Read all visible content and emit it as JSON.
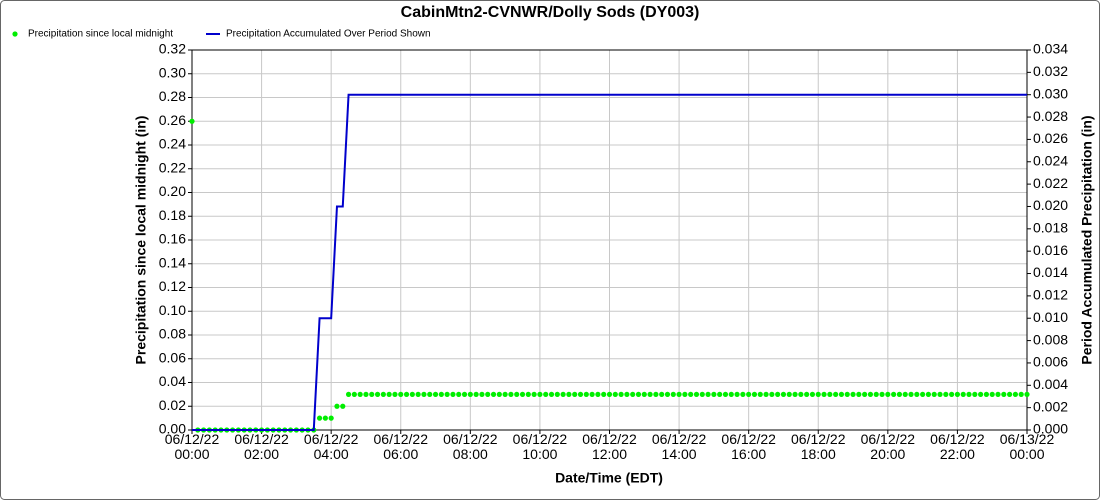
{
  "chart_data": {
    "type": "line",
    "title": "CabinMtn2-CVNWR/Dolly Sods (DY003)",
    "x_label": "Date/Time (EDT)",
    "y_label": "Precipitation since local midnight (in)",
    "y2_label": "Period Accumulated Precipitation (in)",
    "grid": true,
    "legend": "top-left",
    "x": [
      "06/12/22 00:00",
      "06/12/22 00:10",
      "06/12/22 00:20",
      "06/12/22 00:30",
      "06/12/22 00:40",
      "06/12/22 00:50",
      "06/12/22 01:00",
      "06/12/22 01:10",
      "06/12/22 01:20",
      "06/12/22 01:30",
      "06/12/22 01:40",
      "06/12/22 01:50",
      "06/12/22 02:00",
      "06/12/22 02:10",
      "06/12/22 02:20",
      "06/12/22 02:30",
      "06/12/22 02:40",
      "06/12/22 02:50",
      "06/12/22 03:00",
      "06/12/22 03:10",
      "06/12/22 03:20",
      "06/12/22 03:30",
      "06/12/22 03:40",
      "06/12/22 03:50",
      "06/12/22 04:00",
      "06/12/22 04:10",
      "06/12/22 04:20",
      "06/12/22 04:30",
      "06/12/22 04:40",
      "06/12/22 04:50",
      "06/12/22 05:00",
      "06/12/22 05:10",
      "06/12/22 05:20",
      "06/12/22 05:30",
      "06/12/22 05:40",
      "06/12/22 05:50",
      "06/12/22 06:00",
      "06/12/22 06:10",
      "06/12/22 06:20",
      "06/12/22 06:30",
      "06/12/22 06:40",
      "06/12/22 06:50",
      "06/12/22 07:00",
      "06/12/22 07:10",
      "06/12/22 07:20",
      "06/12/22 07:30",
      "06/12/22 07:40",
      "06/12/22 07:50",
      "06/12/22 08:00",
      "06/12/22 08:10",
      "06/12/22 08:20",
      "06/12/22 08:30",
      "06/12/22 08:40",
      "06/12/22 08:50",
      "06/12/22 09:00",
      "06/12/22 09:10",
      "06/12/22 09:20",
      "06/12/22 09:30",
      "06/12/22 09:40",
      "06/12/22 09:50",
      "06/12/22 10:00",
      "06/12/22 10:10",
      "06/12/22 10:20",
      "06/12/22 10:30",
      "06/12/22 10:40",
      "06/12/22 10:50",
      "06/12/22 11:00",
      "06/12/22 11:10",
      "06/12/22 11:20",
      "06/12/22 11:30",
      "06/12/22 11:40",
      "06/12/22 11:50",
      "06/12/22 12:00",
      "06/12/22 12:10",
      "06/12/22 12:20",
      "06/12/22 12:30",
      "06/12/22 12:40",
      "06/12/22 12:50",
      "06/12/22 13:00",
      "06/12/22 13:10",
      "06/12/22 13:20",
      "06/12/22 13:30",
      "06/12/22 13:40",
      "06/12/22 13:50",
      "06/12/22 14:00",
      "06/12/22 14:10",
      "06/12/22 14:20",
      "06/12/22 14:30",
      "06/12/22 14:40",
      "06/12/22 14:50",
      "06/12/22 15:00",
      "06/12/22 15:10",
      "06/12/22 15:20",
      "06/12/22 15:30",
      "06/12/22 15:40",
      "06/12/22 15:50",
      "06/12/22 16:00",
      "06/12/22 16:10",
      "06/12/22 16:20",
      "06/12/22 16:30",
      "06/12/22 16:40",
      "06/12/22 16:50",
      "06/12/22 17:00",
      "06/12/22 17:10",
      "06/12/22 17:20",
      "06/12/22 17:30",
      "06/12/22 17:40",
      "06/12/22 17:50",
      "06/12/22 18:00",
      "06/12/22 18:10",
      "06/12/22 18:20",
      "06/12/22 18:30",
      "06/12/22 18:40",
      "06/12/22 18:50",
      "06/12/22 19:00",
      "06/12/22 19:10",
      "06/12/22 19:20",
      "06/12/22 19:30",
      "06/12/22 19:40",
      "06/12/22 19:50",
      "06/12/22 20:00",
      "06/12/22 20:10",
      "06/12/22 20:20",
      "06/12/22 20:30",
      "06/12/22 20:40",
      "06/12/22 20:50",
      "06/12/22 21:00",
      "06/12/22 21:10",
      "06/12/22 21:20",
      "06/12/22 21:30",
      "06/12/22 21:40",
      "06/12/22 21:50",
      "06/12/22 22:00",
      "06/12/22 22:10",
      "06/12/22 22:20",
      "06/12/22 22:30",
      "06/12/22 22:40",
      "06/12/22 22:50",
      "06/12/22 23:00",
      "06/12/22 23:10",
      "06/12/22 23:20",
      "06/12/22 23:30",
      "06/12/22 23:40",
      "06/12/22 23:50",
      "06/13/22 00:00"
    ],
    "xlim": [
      "06/12/22 00:00",
      "06/13/22 00:00"
    ],
    "xticks": [
      "06/12/22 00:00",
      "06/12/22 02:00",
      "06/12/22 04:00",
      "06/12/22 06:00",
      "06/12/22 08:00",
      "06/12/22 10:00",
      "06/12/22 12:00",
      "06/12/22 14:00",
      "06/12/22 16:00",
      "06/12/22 18:00",
      "06/12/22 20:00",
      "06/12/22 22:00",
      "06/13/22 00:00"
    ],
    "ylim": [
      0,
      0.32
    ],
    "yticks": [
      {
        "value": 0,
        "label": "0.00"
      },
      {
        "value": 0.02,
        "label": "0.02"
      },
      {
        "value": 0.04,
        "label": "0.04"
      },
      {
        "value": 0.06,
        "label": "0.06"
      },
      {
        "value": 0.08,
        "label": "0.08"
      },
      {
        "value": 0.1,
        "label": "0.10"
      },
      {
        "value": 0.12,
        "label": "0.12"
      },
      {
        "value": 0.14,
        "label": "0.14"
      },
      {
        "value": 0.16,
        "label": "0.16"
      },
      {
        "value": 0.18,
        "label": "0.18"
      },
      {
        "value": 0.2,
        "label": "0.20"
      },
      {
        "value": 0.22,
        "label": "0.22"
      },
      {
        "value": 0.24,
        "label": "0.24"
      },
      {
        "value": 0.26,
        "label": "0.26"
      },
      {
        "value": 0.28,
        "label": "0.28"
      },
      {
        "value": 0.3,
        "label": "0.30"
      },
      {
        "value": 0.32,
        "label": "0.32"
      }
    ],
    "y2lim": [
      0,
      0.034
    ],
    "y2ticks": [
      {
        "value": 0,
        "label": "0.000"
      },
      {
        "value": 0.002,
        "label": "0.002"
      },
      {
        "value": 0.004,
        "label": "0.004"
      },
      {
        "value": 0.006,
        "label": "0.006"
      },
      {
        "value": 0.008,
        "label": "0.008"
      },
      {
        "value": 0.01,
        "label": "0.010"
      },
      {
        "value": 0.012,
        "label": "0.012"
      },
      {
        "value": 0.014,
        "label": "0.014"
      },
      {
        "value": 0.016,
        "label": "0.016"
      },
      {
        "value": 0.018,
        "label": "0.018"
      },
      {
        "value": 0.02,
        "label": "0.020"
      },
      {
        "value": 0.022,
        "label": "0.022"
      },
      {
        "value": 0.024,
        "label": "0.024"
      },
      {
        "value": 0.026,
        "label": "0.026"
      },
      {
        "value": 0.028,
        "label": "0.028"
      },
      {
        "value": 0.03,
        "label": "0.030"
      },
      {
        "value": 0.032,
        "label": "0.032"
      },
      {
        "value": 0.034,
        "label": "0.034"
      }
    ],
    "series": [
      {
        "name": "Precipitation since local midnight",
        "color": "#00ee00",
        "style": "dots",
        "values": [
          0.26,
          0,
          0,
          0,
          0,
          0,
          0,
          0,
          0,
          0,
          0,
          0,
          0,
          0,
          0,
          0,
          0,
          0,
          0,
          0,
          0,
          0,
          0.01,
          0.01,
          0.01,
          0.02,
          0.02,
          0.03,
          0.03,
          0.03,
          0.03,
          0.03,
          0.03,
          0.03,
          0.03,
          0.03,
          0.03,
          0.03,
          0.03,
          0.03,
          0.03,
          0.03,
          0.03,
          0.03,
          0.03,
          0.03,
          0.03,
          0.03,
          0.03,
          0.03,
          0.03,
          0.03,
          0.03,
          0.03,
          0.03,
          0.03,
          0.03,
          0.03,
          0.03,
          0.03,
          0.03,
          0.03,
          0.03,
          0.03,
          0.03,
          0.03,
          0.03,
          0.03,
          0.03,
          0.03,
          0.03,
          0.03,
          0.03,
          0.03,
          0.03,
          0.03,
          0.03,
          0.03,
          0.03,
          0.03,
          0.03,
          0.03,
          0.03,
          0.03,
          0.03,
          0.03,
          0.03,
          0.03,
          0.03,
          0.03,
          0.03,
          0.03,
          0.03,
          0.03,
          0.03,
          0.03,
          0.03,
          0.03,
          0.03,
          0.03,
          0.03,
          0.03,
          0.03,
          0.03,
          0.03,
          0.03,
          0.03,
          0.03,
          0.03,
          0.03,
          0.03,
          0.03,
          0.03,
          0.03,
          0.03,
          0.03,
          0.03,
          0.03,
          0.03,
          0.03,
          0.03,
          0.03,
          0.03,
          0.03,
          0.03,
          0.03,
          0.03,
          0.03,
          0.03,
          0.03,
          0.03,
          0.03,
          0.03,
          0.03,
          0.03,
          0.03,
          0.03,
          0.03,
          0.03,
          0.03,
          0.03,
          0.03,
          0.03,
          0.03,
          0.03
        ]
      },
      {
        "name": "Precipitation Accumulated Over Period Shown",
        "color": "#0000cc",
        "style": "line",
        "axis": "y2",
        "values": [
          0,
          0,
          0,
          0,
          0,
          0,
          0,
          0,
          0,
          0,
          0,
          0,
          0,
          0,
          0,
          0,
          0,
          0,
          0,
          0,
          0,
          0,
          0.01,
          0.01,
          0.01,
          0.02,
          0.02,
          0.03,
          0.03,
          0.03,
          0.03,
          0.03,
          0.03,
          0.03,
          0.03,
          0.03,
          0.03,
          0.03,
          0.03,
          0.03,
          0.03,
          0.03,
          0.03,
          0.03,
          0.03,
          0.03,
          0.03,
          0.03,
          0.03,
          0.03,
          0.03,
          0.03,
          0.03,
          0.03,
          0.03,
          0.03,
          0.03,
          0.03,
          0.03,
          0.03,
          0.03,
          0.03,
          0.03,
          0.03,
          0.03,
          0.03,
          0.03,
          0.03,
          0.03,
          0.03,
          0.03,
          0.03,
          0.03,
          0.03,
          0.03,
          0.03,
          0.03,
          0.03,
          0.03,
          0.03,
          0.03,
          0.03,
          0.03,
          0.03,
          0.03,
          0.03,
          0.03,
          0.03,
          0.03,
          0.03,
          0.03,
          0.03,
          0.03,
          0.03,
          0.03,
          0.03,
          0.03,
          0.03,
          0.03,
          0.03,
          0.03,
          0.03,
          0.03,
          0.03,
          0.03,
          0.03,
          0.03,
          0.03,
          0.03,
          0.03,
          0.03,
          0.03,
          0.03,
          0.03,
          0.03,
          0.03,
          0.03,
          0.03,
          0.03,
          0.03,
          0.03,
          0.03,
          0.03,
          0.03,
          0.03,
          0.03,
          0.03,
          0.03,
          0.03,
          0.03,
          0.03,
          0.03,
          0.03,
          0.03,
          0.03,
          0.03,
          0.03,
          0.03,
          0.03,
          0.03,
          0.03,
          0.03,
          0.03,
          0.03,
          0.03
        ]
      }
    ]
  }
}
